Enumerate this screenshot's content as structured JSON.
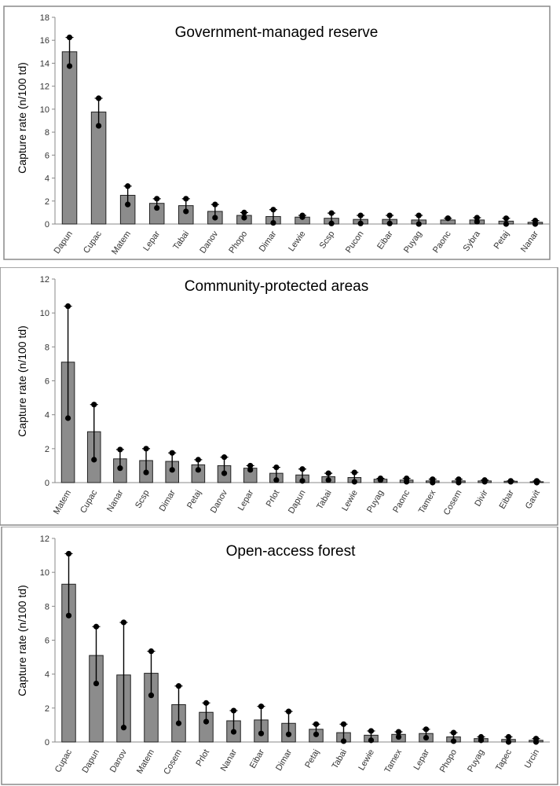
{
  "chart_data": [
    {
      "type": "bar",
      "title": "Government-managed reserve",
      "ylabel": "Capture rate (n/100 td)",
      "ylim": [
        0,
        18
      ],
      "ytick_values": [
        0,
        2,
        4,
        6,
        8,
        10,
        12,
        14,
        16,
        18
      ],
      "categories": [
        "Dapun",
        "Cupac",
        "Matem",
        "Lepar",
        "Tabai",
        "Danov",
        "Phopo",
        "Dimar",
        "Lewie",
        "Scsp",
        "Pucon",
        "Eibar",
        "Puyag",
        "Paonc",
        "Sybra",
        "Petaj",
        "Nanar"
      ],
      "values": [
        15.0,
        9.75,
        2.5,
        1.8,
        1.6,
        1.1,
        0.75,
        0.65,
        0.6,
        0.5,
        0.4,
        0.4,
        0.35,
        0.35,
        0.35,
        0.25,
        0.15
      ],
      "point_high": [
        16.25,
        10.95,
        3.3,
        2.2,
        2.2,
        1.7,
        1.0,
        1.25,
        0.75,
        0.95,
        0.75,
        0.75,
        0.75,
        0.5,
        0.55,
        0.5,
        0.3
      ],
      "point_low": [
        13.75,
        8.55,
        1.7,
        1.4,
        1.1,
        0.55,
        0.55,
        0.1,
        0.6,
        0.05,
        0.05,
        0.05,
        0.0,
        0.5,
        0.2,
        0.0,
        0.0
      ],
      "grid": false,
      "colors": {
        "bar": "#8c8c8c",
        "edge": "#222222",
        "axis": "#888888",
        "border": "#8a8a8a"
      }
    },
    {
      "type": "bar",
      "title": "Community-protected areas",
      "ylabel": "Capture rate (n/100 td)",
      "ylim": [
        0,
        12
      ],
      "ytick_values": [
        0,
        2,
        4,
        6,
        8,
        10,
        12
      ],
      "categories": [
        "Matem",
        "Cupac",
        "Nanar",
        "Scsp",
        "Dimar",
        "Petaj",
        "Danov",
        "Lepar",
        "Prlot",
        "Dapun",
        "Tabai",
        "Lewie",
        "Puyag",
        "Paonc",
        "Tamex",
        "Cosem",
        "Divir",
        "Eibar",
        "Gavit"
      ],
      "values": [
        7.1,
        3.0,
        1.4,
        1.3,
        1.25,
        1.05,
        1.0,
        0.85,
        0.55,
        0.45,
        0.35,
        0.3,
        0.2,
        0.15,
        0.1,
        0.1,
        0.1,
        0.08,
        0.05
      ],
      "point_high": [
        10.4,
        4.6,
        1.95,
        2.0,
        1.75,
        1.35,
        1.5,
        1.0,
        0.9,
        0.8,
        0.55,
        0.6,
        0.25,
        0.25,
        0.2,
        0.2,
        0.15,
        0.1,
        0.1
      ],
      "point_low": [
        3.8,
        1.35,
        0.85,
        0.6,
        0.75,
        0.75,
        0.55,
        0.75,
        0.15,
        0.1,
        0.15,
        0.05,
        0.15,
        0.05,
        0.0,
        0.0,
        0.05,
        0.05,
        0.0
      ],
      "grid": false,
      "colors": {
        "bar": "#8c8c8c",
        "edge": "#222222",
        "axis": "#888888",
        "border": "#8a8a8a"
      }
    },
    {
      "type": "bar",
      "title": "Open-access forest",
      "ylabel": "Capture rate (n/100 td)",
      "ylim": [
        0,
        12
      ],
      "ytick_values": [
        0,
        2,
        4,
        6,
        8,
        10,
        12
      ],
      "categories": [
        "Cupac",
        "Dapun",
        "Danov",
        "Matem",
        "Cosem",
        "Prlot",
        "Nanar",
        "Eibar",
        "Dimar",
        "Petaj",
        "Tabai",
        "Lewie",
        "Tamex",
        "Lepar",
        "Phopo",
        "Puyag",
        "Tapec",
        "Urcin"
      ],
      "values": [
        9.3,
        5.1,
        3.95,
        4.05,
        2.2,
        1.75,
        1.25,
        1.3,
        1.1,
        0.75,
        0.55,
        0.4,
        0.45,
        0.5,
        0.3,
        0.2,
        0.15,
        0.1
      ],
      "point_high": [
        11.1,
        6.8,
        7.05,
        5.35,
        3.3,
        2.3,
        1.85,
        2.1,
        1.8,
        1.05,
        1.05,
        0.65,
        0.6,
        0.75,
        0.55,
        0.3,
        0.3,
        0.2
      ],
      "point_low": [
        7.45,
        3.45,
        0.85,
        2.75,
        1.1,
        1.2,
        0.6,
        0.5,
        0.45,
        0.45,
        0.05,
        0.1,
        0.3,
        0.25,
        0.05,
        0.1,
        0.0,
        0.0
      ],
      "grid": false,
      "colors": {
        "bar": "#8c8c8c",
        "edge": "#222222",
        "axis": "#888888",
        "border": "#8a8a8a"
      }
    }
  ]
}
